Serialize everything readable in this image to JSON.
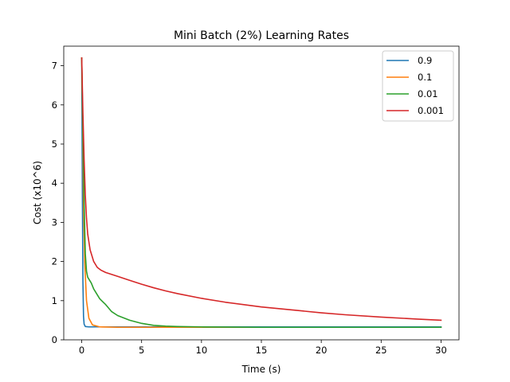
{
  "chart_data": {
    "type": "line",
    "title": "Mini Batch (2%) Learning Rates",
    "xlabel": "Time (s)",
    "ylabel": "Cost (x10^6)",
    "xlim": [
      -1.5,
      31.5
    ],
    "ylim": [
      0,
      7.5
    ],
    "xticks": [
      0,
      5,
      10,
      15,
      20,
      25,
      30
    ],
    "yticks": [
      0,
      1,
      2,
      3,
      4,
      5,
      6,
      7
    ],
    "grid": false,
    "legend_position": "top-right",
    "series": [
      {
        "name": "0.9",
        "color": "#1f77b4",
        "points": [
          [
            0,
            7.2
          ],
          [
            0.05,
            4.0
          ],
          [
            0.1,
            1.5
          ],
          [
            0.15,
            0.6
          ],
          [
            0.2,
            0.4
          ],
          [
            0.3,
            0.34
          ],
          [
            0.6,
            0.33
          ],
          [
            5,
            0.33
          ],
          [
            10,
            0.33
          ],
          [
            15,
            0.33
          ],
          [
            20,
            0.33
          ],
          [
            25,
            0.33
          ],
          [
            30,
            0.33
          ]
        ]
      },
      {
        "name": "0.1",
        "color": "#ff7f0e",
        "points": [
          [
            0,
            7.2
          ],
          [
            0.08,
            5.5
          ],
          [
            0.15,
            3.5
          ],
          [
            0.25,
            2.0
          ],
          [
            0.4,
            1.0
          ],
          [
            0.6,
            0.55
          ],
          [
            0.9,
            0.38
          ],
          [
            1.5,
            0.33
          ],
          [
            3,
            0.32
          ],
          [
            5,
            0.32
          ],
          [
            10,
            0.32
          ],
          [
            15,
            0.32
          ],
          [
            20,
            0.32
          ],
          [
            25,
            0.32
          ],
          [
            30,
            0.32
          ]
        ]
      },
      {
        "name": "0.01",
        "color": "#2ca02c",
        "points": [
          [
            0,
            7.2
          ],
          [
            0.05,
            6.2
          ],
          [
            0.12,
            5.0
          ],
          [
            0.2,
            3.5
          ],
          [
            0.3,
            2.2
          ],
          [
            0.4,
            1.75
          ],
          [
            0.5,
            1.6
          ],
          [
            0.8,
            1.45
          ],
          [
            1,
            1.3
          ],
          [
            1.5,
            1.05
          ],
          [
            2,
            0.9
          ],
          [
            2.5,
            0.72
          ],
          [
            3,
            0.62
          ],
          [
            4,
            0.5
          ],
          [
            5,
            0.42
          ],
          [
            6,
            0.37
          ],
          [
            7,
            0.35
          ],
          [
            8,
            0.34
          ],
          [
            10,
            0.33
          ],
          [
            15,
            0.32
          ],
          [
            20,
            0.32
          ],
          [
            25,
            0.32
          ],
          [
            30,
            0.32
          ]
        ]
      },
      {
        "name": "0.001",
        "color": "#d62728",
        "points": [
          [
            0,
            7.2
          ],
          [
            0.05,
            6.5
          ],
          [
            0.1,
            5.8
          ],
          [
            0.2,
            4.6
          ],
          [
            0.3,
            3.7
          ],
          [
            0.4,
            3.1
          ],
          [
            0.5,
            2.7
          ],
          [
            0.7,
            2.3
          ],
          [
            1,
            2.0
          ],
          [
            1.3,
            1.85
          ],
          [
            1.6,
            1.78
          ],
          [
            2,
            1.72
          ],
          [
            3,
            1.62
          ],
          [
            4,
            1.52
          ],
          [
            5,
            1.42
          ],
          [
            6,
            1.33
          ],
          [
            7,
            1.25
          ],
          [
            8,
            1.18
          ],
          [
            10,
            1.06
          ],
          [
            12,
            0.96
          ],
          [
            15,
            0.84
          ],
          [
            18,
            0.75
          ],
          [
            20,
            0.69
          ],
          [
            22,
            0.64
          ],
          [
            25,
            0.58
          ],
          [
            28,
            0.53
          ],
          [
            30,
            0.5
          ]
        ]
      }
    ]
  }
}
